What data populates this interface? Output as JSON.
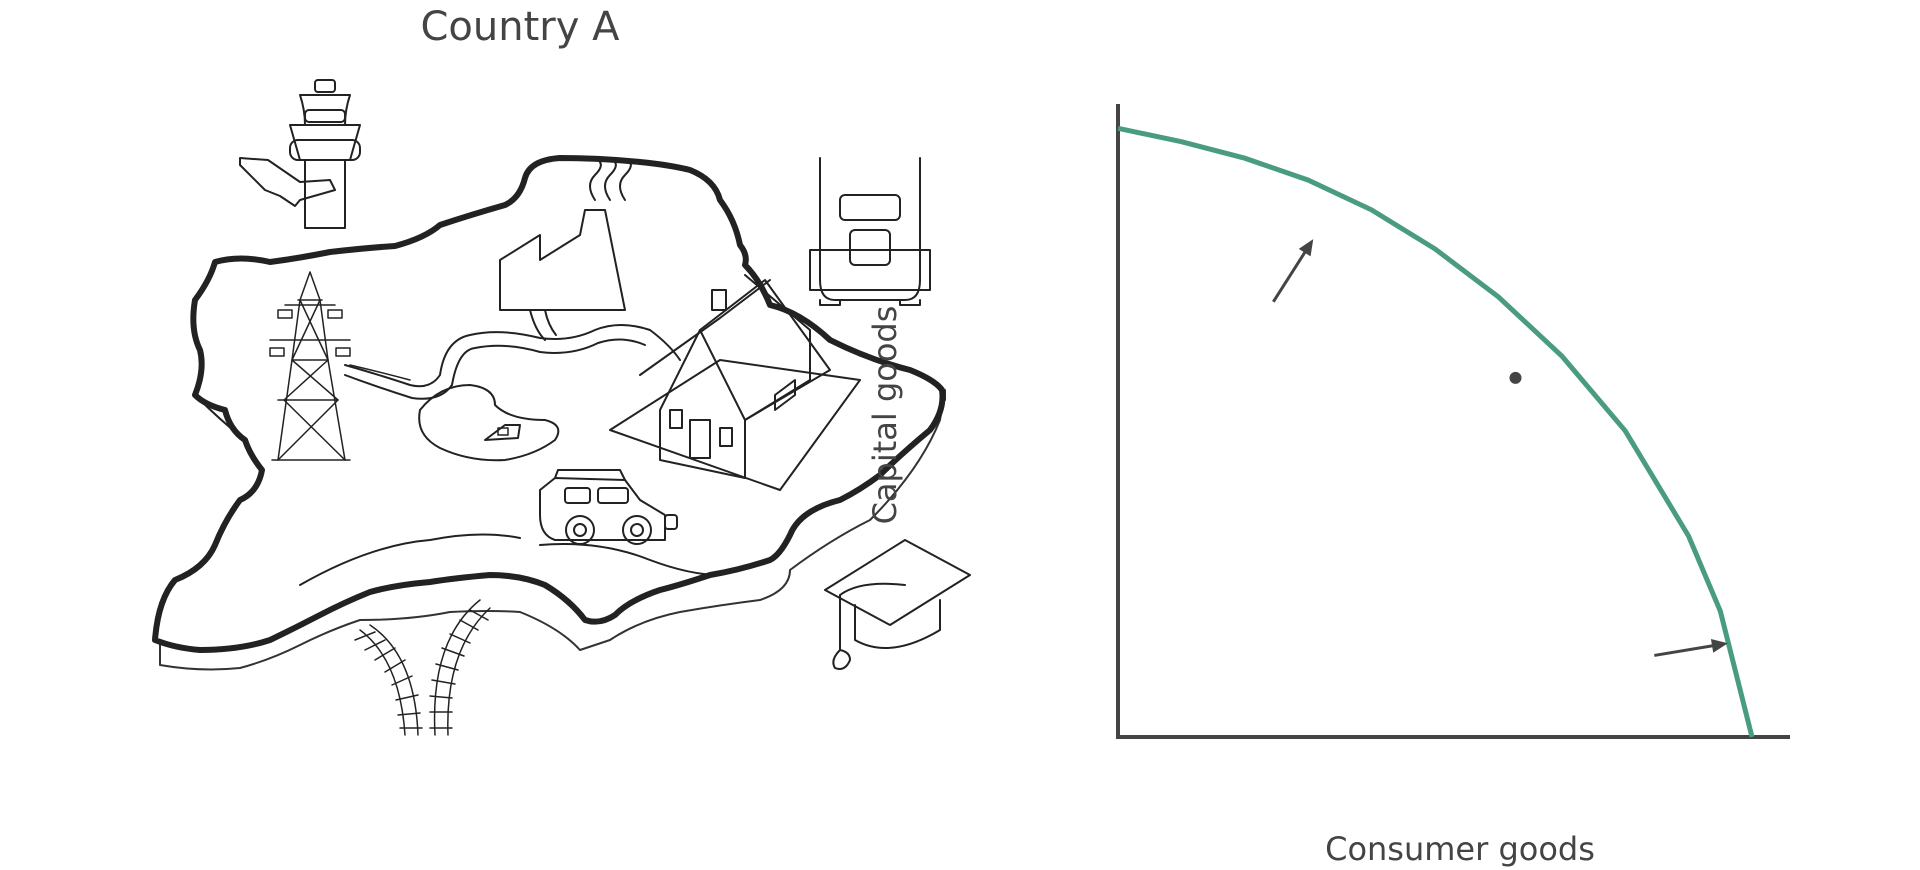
{
  "map": {
    "title": "Country A",
    "icons": [
      "control-tower-icon",
      "factory-icon",
      "truck-icon",
      "power-pylon-icon",
      "house-icon",
      "boat-icon",
      "jeep-icon",
      "graduation-cap-icon",
      "railway-track-icon"
    ]
  },
  "chart_data": {
    "type": "line",
    "xlabel": "Consumer goods",
    "ylabel": "Capital goods",
    "series": [
      {
        "x": [
          0,
          10,
          20,
          30,
          40,
          50,
          60,
          70,
          80,
          90,
          95,
          100
        ],
        "y": [
          100,
          97.8,
          95.1,
          91.5,
          86.6,
          80.2,
          72.3,
          62.6,
          50.3,
          33.0,
          20.7,
          0
        ]
      }
    ],
    "marked_point": {
      "x": 62.7,
      "y": 59
    },
    "arrows": [
      {
        "from": {
          "x": 24.5,
          "y": 71.5
        },
        "to": {
          "x": 30.8,
          "y": 81.8
        }
      },
      {
        "from": {
          "x": 84.6,
          "y": 13.4
        },
        "to": {
          "x": 96.2,
          "y": 15.4
        }
      }
    ],
    "xlim": [
      0,
      106
    ],
    "ylim": [
      0,
      104
    ],
    "grid": false,
    "colors": {
      "curve": "#4a9c80",
      "axes": "#444444",
      "arrows": "#444444"
    }
  }
}
